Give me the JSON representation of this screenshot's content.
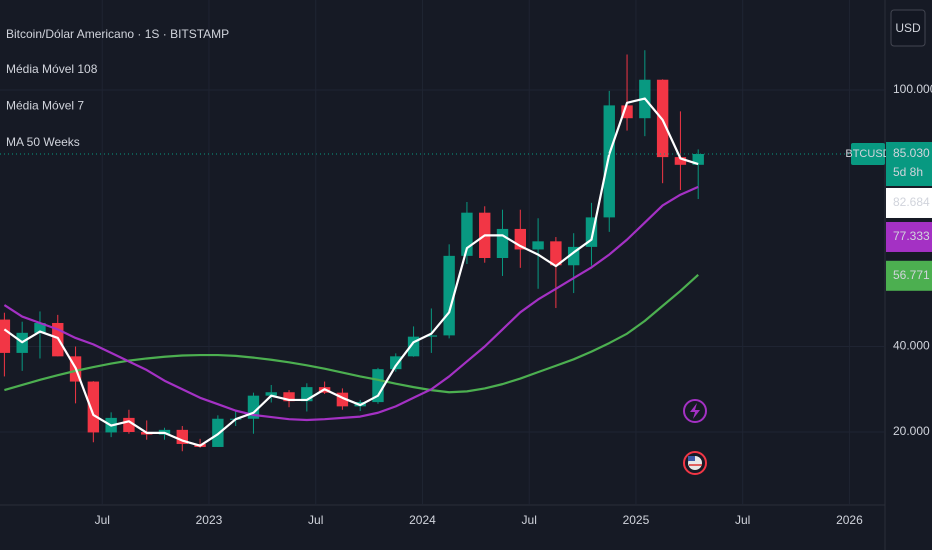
{
  "chart_data": {
    "type": "candlestick",
    "title": "Bitcoin/Dólar Americano · 1S · BITSTAMP",
    "currency": "USD",
    "symbol": "BTCUSD",
    "countdown": "5d 8h",
    "x": [
      "2022-01",
      "2022-02",
      "2022-03",
      "2022-04",
      "2022-05",
      "2022-06",
      "2022-07",
      "2022-08",
      "2022-09",
      "2022-10",
      "2022-11",
      "2022-12",
      "2023-01",
      "2023-02",
      "2023-03",
      "2023-04",
      "2023-05",
      "2023-06",
      "2023-07",
      "2023-08",
      "2023-09",
      "2023-10",
      "2023-11",
      "2023-12",
      "2024-01",
      "2024-02",
      "2024-03",
      "2024-04",
      "2024-05",
      "2024-06",
      "2024-07",
      "2024-08",
      "2024-09",
      "2024-10",
      "2024-11",
      "2024-12",
      "2025-01",
      "2025-02",
      "2025-03",
      "2025-04"
    ],
    "open": [
      46300,
      38500,
      43200,
      45500,
      37700,
      31800,
      19900,
      23300,
      20000,
      19400,
      20500,
      17200,
      16500,
      23100,
      23100,
      28500,
      29300,
      27200,
      30500,
      29200,
      26000,
      27000,
      34700,
      37700,
      42300,
      42600,
      61200,
      71300,
      60700,
      67500,
      62700,
      64600,
      59000,
      63300,
      70200,
      96400,
      93400,
      102400,
      84300,
      82500
    ],
    "high": [
      47900,
      45800,
      48200,
      47400,
      40000,
      31900,
      24600,
      25200,
      22700,
      21000,
      21400,
      18400,
      23900,
      25200,
      29200,
      31000,
      29800,
      31400,
      31800,
      30200,
      27500,
      35000,
      38400,
      44700,
      48900,
      63900,
      73800,
      72800,
      72000,
      72000,
      70000,
      65600,
      66500,
      73600,
      99800,
      108300,
      109300,
      102500,
      95000,
      86100
    ],
    "low": [
      33000,
      34300,
      37200,
      37700,
      26700,
      17600,
      18800,
      19600,
      18200,
      18200,
      15500,
      16300,
      16500,
      21400,
      19600,
      26900,
      25800,
      24800,
      28900,
      25200,
      24900,
      26600,
      34100,
      37600,
      38500,
      41900,
      59300,
      59600,
      56500,
      58400,
      53500,
      49000,
      52500,
      58900,
      66800,
      90500,
      89200,
      78200,
      76600,
      74500
    ],
    "close": [
      38500,
      43200,
      45500,
      37700,
      31800,
      19900,
      23300,
      20000,
      19400,
      20500,
      17200,
      16500,
      23100,
      23100,
      28500,
      29300,
      27200,
      30500,
      29200,
      26000,
      27000,
      34700,
      37700,
      42300,
      42600,
      61200,
      71300,
      60700,
      67500,
      62700,
      64600,
      59000,
      63300,
      70200,
      96400,
      93400,
      102400,
      84300,
      82500,
      85030
    ],
    "close_labels": [
      null,
      null,
      null,
      null,
      null,
      null,
      null,
      null,
      null,
      null,
      null,
      null,
      null,
      null,
      null,
      null,
      null,
      null,
      null,
      null,
      null,
      null,
      null,
      null,
      null,
      null,
      null,
      null,
      null,
      null,
      null,
      null,
      null,
      null,
      null,
      null,
      null,
      null,
      null,
      "85.030"
    ],
    "up_color": "#089981",
    "down_color": "#f23645",
    "series": [
      {
        "name": "Média Móvel 108",
        "color": "#4caf50",
        "values": [
          29800,
          31000,
          32200,
          33300,
          34300,
          35200,
          36000,
          36700,
          37200,
          37600,
          37900,
          38000,
          38000,
          37800,
          37400,
          36900,
          36300,
          35600,
          34800,
          33900,
          33000,
          32200,
          31300,
          30500,
          29800,
          29300,
          29500,
          30200,
          31200,
          32500,
          34000,
          35500,
          37000,
          38800,
          40800,
          43000,
          46000,
          49500,
          53000,
          56771
        ],
        "value_labels": [
          null,
          null,
          null,
          null,
          null,
          null,
          null,
          null,
          null,
          null,
          null,
          null,
          null,
          null,
          null,
          null,
          null,
          null,
          null,
          null,
          null,
          null,
          null,
          null,
          null,
          null,
          null,
          null,
          null,
          null,
          null,
          null,
          null,
          null,
          null,
          null,
          null,
          null,
          null,
          "56.771"
        ]
      },
      {
        "name": "Média Móvel 7",
        "color": "#ffffff",
        "values": [
          44000,
          41000,
          43500,
          42000,
          35000,
          24000,
          21500,
          22500,
          19800,
          19800,
          18000,
          16800,
          19500,
          23000,
          24500,
          28500,
          27500,
          27500,
          30000,
          28000,
          26300,
          28500,
          35500,
          41000,
          43000,
          48000,
          63000,
          66000,
          66000,
          63500,
          61500,
          58800,
          62000,
          65000,
          85000,
          97000,
          98000,
          93000,
          84000,
          82684
        ],
        "value_labels": [
          null,
          null,
          null,
          null,
          null,
          null,
          null,
          null,
          null,
          null,
          null,
          null,
          null,
          null,
          null,
          null,
          null,
          null,
          null,
          null,
          null,
          null,
          null,
          null,
          null,
          null,
          null,
          null,
          null,
          null,
          null,
          null,
          null,
          null,
          null,
          null,
          null,
          null,
          null,
          "82.684"
        ]
      },
      {
        "name": "MA 50 Weeks",
        "color": "#a431c4",
        "values": [
          49700,
          47000,
          45500,
          44000,
          42000,
          40500,
          38500,
          36500,
          34500,
          32000,
          30000,
          28000,
          26500,
          25000,
          24000,
          23500,
          23000,
          22800,
          23000,
          23300,
          23600,
          24500,
          26000,
          28000,
          30000,
          33000,
          36500,
          40000,
          44000,
          48000,
          51000,
          53500,
          56000,
          58500,
          61500,
          65000,
          69000,
          73000,
          75500,
          77333
        ],
        "value_labels": [
          null,
          null,
          null,
          null,
          null,
          null,
          null,
          null,
          null,
          null,
          null,
          null,
          null,
          null,
          null,
          null,
          null,
          null,
          null,
          null,
          null,
          null,
          null,
          null,
          null,
          null,
          null,
          null,
          null,
          null,
          null,
          null,
          null,
          null,
          null,
          null,
          null,
          null,
          null,
          "77.333"
        ]
      }
    ],
    "ylim": [
      2925,
      121050
    ],
    "yticks": [
      {
        "value": 20000,
        "label": "20.000"
      },
      {
        "value": 40000,
        "label": "40.000"
      },
      {
        "value": 100000,
        "label": "100.000"
      }
    ],
    "xlim": [
      "2022-01",
      "2026-03"
    ],
    "xticks": [
      {
        "value": "2022-07",
        "label": "Jul"
      },
      {
        "value": "2023-01",
        "label": "2023"
      },
      {
        "value": "2023-07",
        "label": "Jul"
      },
      {
        "value": "2024-01",
        "label": "2024"
      },
      {
        "value": "2024-07",
        "label": "Jul"
      },
      {
        "value": "2025-01",
        "label": "2025"
      },
      {
        "value": "2025-07",
        "label": "Jul"
      },
      {
        "value": "2026-01",
        "label": "2026"
      }
    ],
    "grid": true
  }
}
